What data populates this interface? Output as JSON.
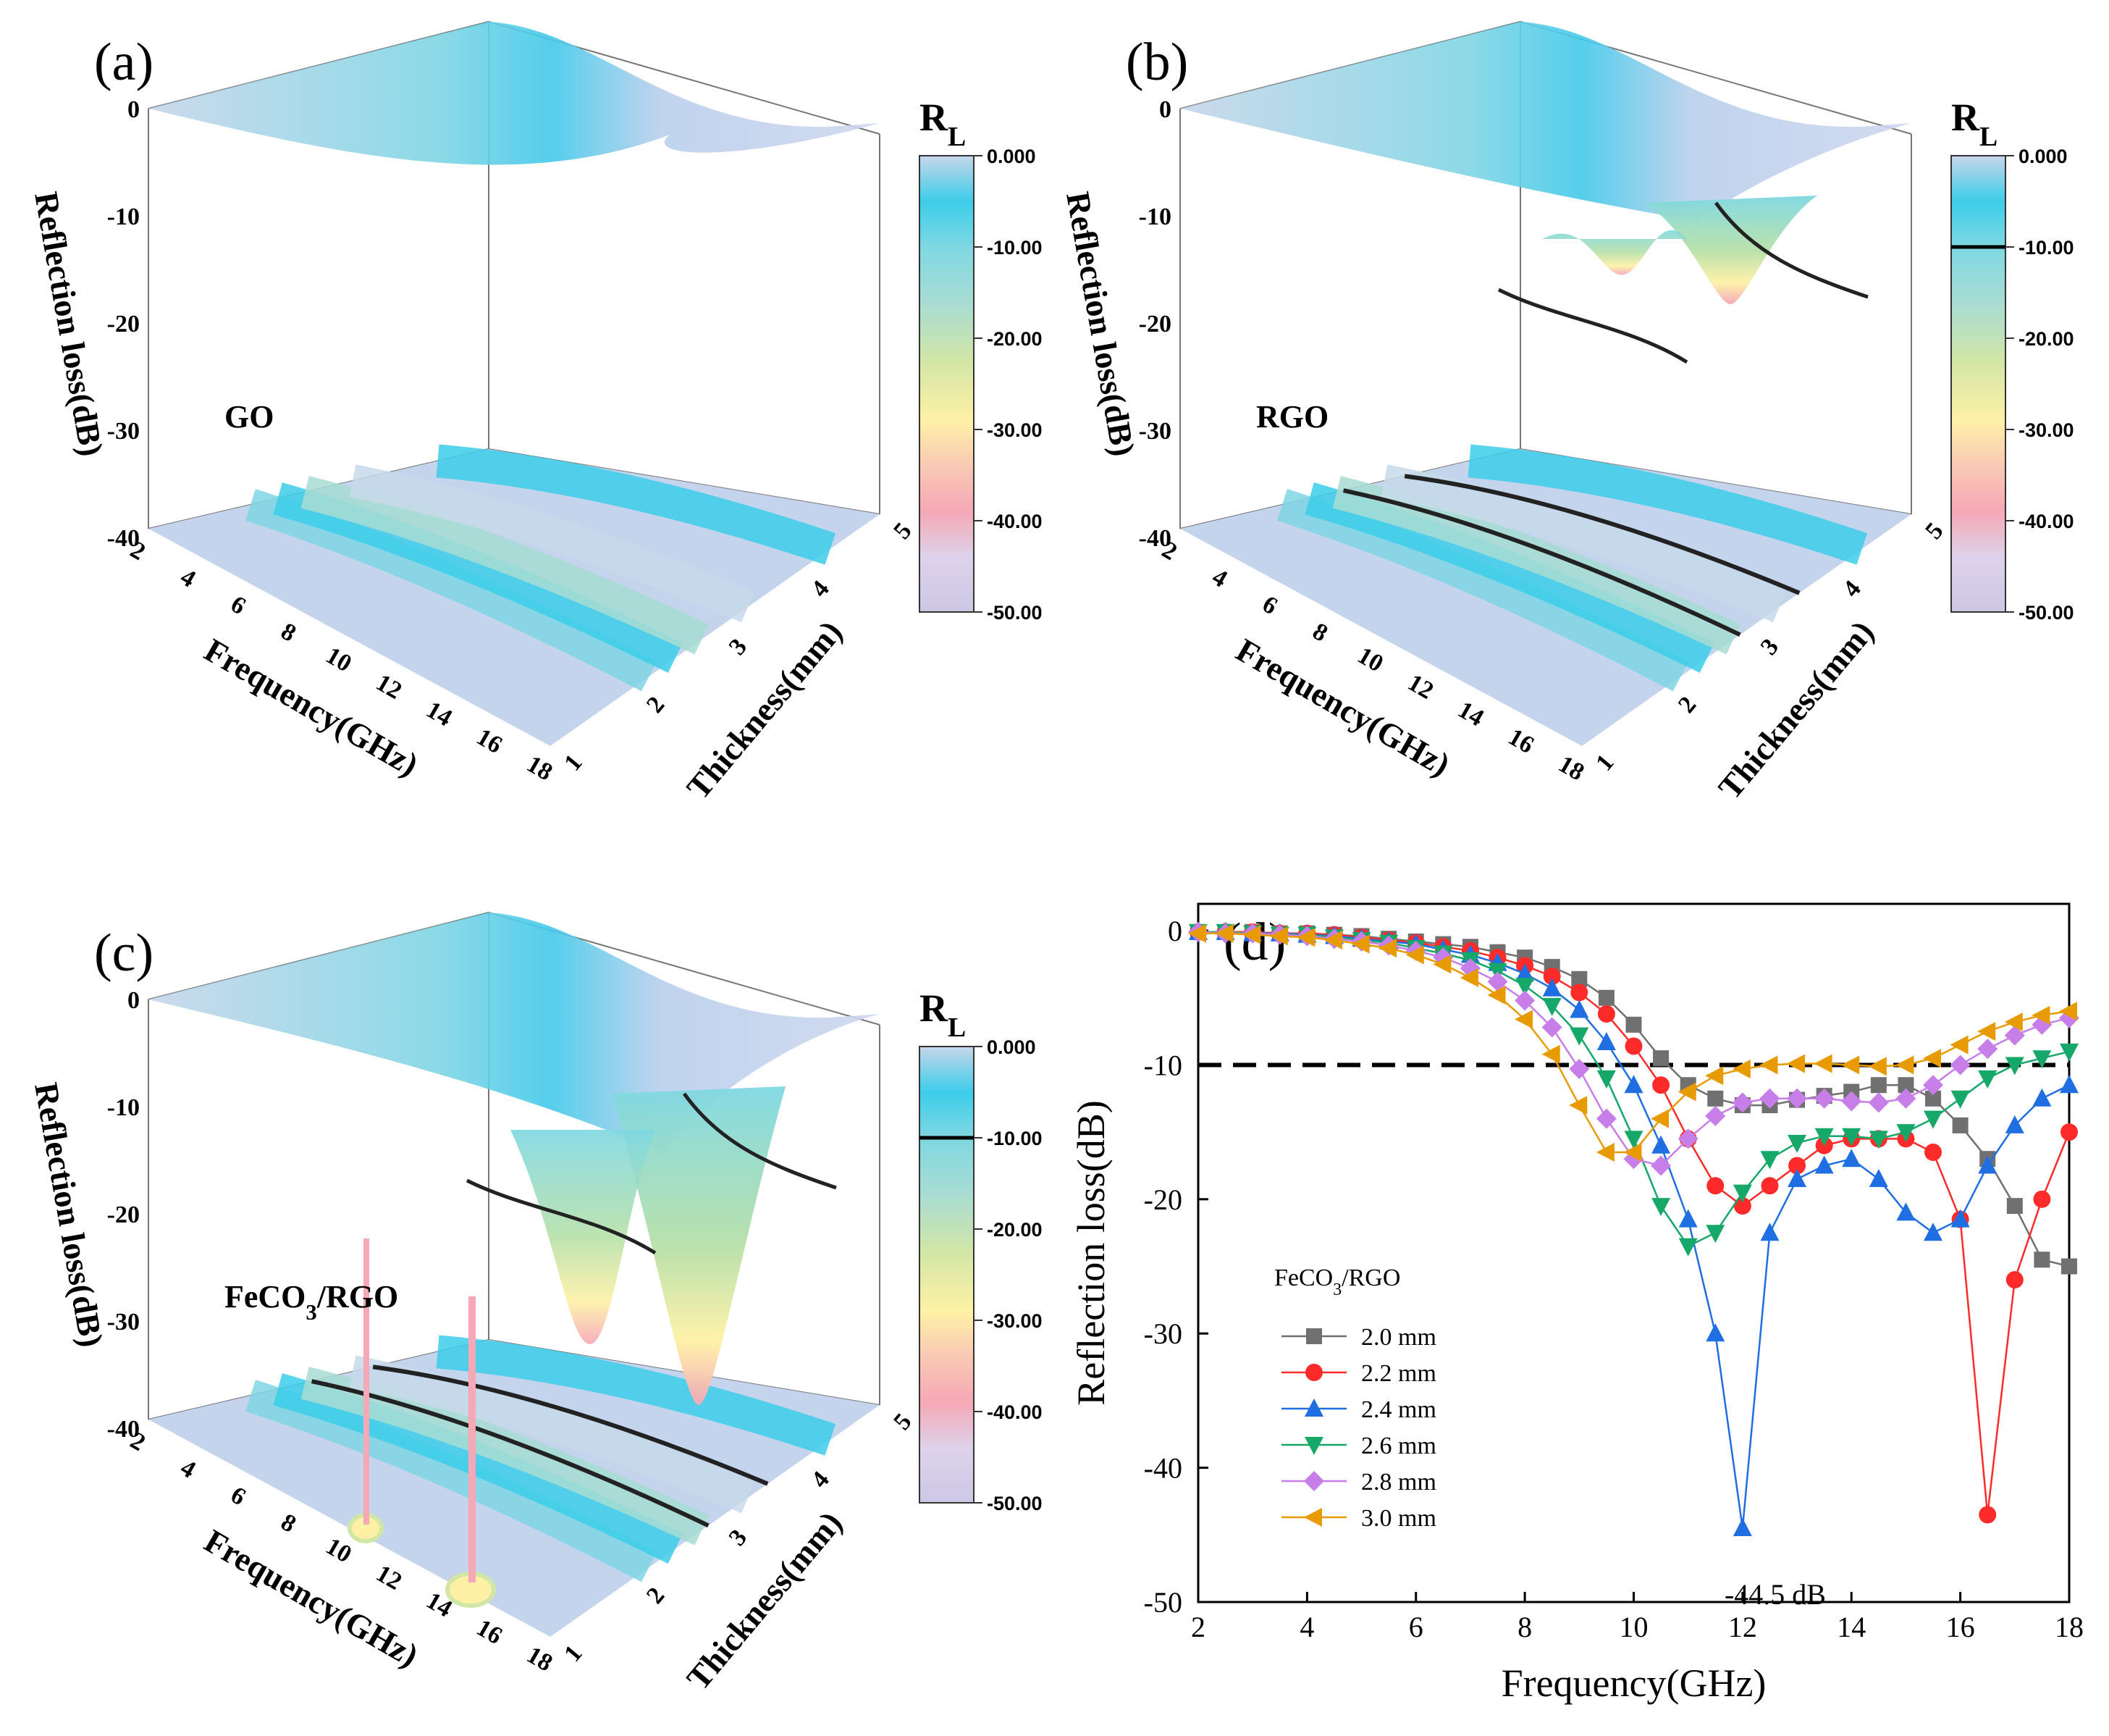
{
  "colors": {
    "palette": [
      "#cdc8e6",
      "#ddd2ea",
      "#f6a8b6",
      "#fef1a6",
      "#d2e6a6",
      "#a7dcd4",
      "#7fd8e2",
      "#3ccdea",
      "#abd4ea",
      "#c7d6ea"
    ],
    "series": [
      "#707070",
      "#ff2b2b",
      "#1f6fe3",
      "#16a868",
      "#c77ee8",
      "#e89b00"
    ]
  },
  "chart_data": [
    {
      "panel": "(a)",
      "type": "surface3d",
      "material": "GO",
      "zlabel": "Reflection loss(dB)",
      "xlabel": "Frequency(GHz)",
      "ylabel": "Thickness(mm)",
      "z_ticks": [
        "0",
        "-10",
        "-20",
        "-30",
        "-40"
      ],
      "x_ticks": [
        "2",
        "4",
        "6",
        "8",
        "10",
        "12",
        "14",
        "16",
        "18"
      ],
      "y_ticks": [
        "1",
        "2",
        "3",
        "4",
        "5"
      ],
      "colorbar": {
        "title": "R",
        "title_sub": "L",
        "ticks": [
          "0.000",
          "-10.00",
          "-20.00",
          "-30.00",
          "-40.00",
          "-50.00"
        ],
        "range": [
          -50,
          0
        ]
      },
      "min_rl_approx": -11
    },
    {
      "panel": "(b)",
      "type": "surface3d",
      "material": "RGO",
      "zlabel": "Reflection loss(dB)",
      "xlabel": "Frequency(GHz)",
      "ylabel": "Thickness(mm)",
      "z_ticks": [
        "0",
        "-10",
        "-20",
        "-30",
        "-40"
      ],
      "x_ticks": [
        "2",
        "4",
        "6",
        "8",
        "10",
        "12",
        "14",
        "16",
        "18"
      ],
      "y_ticks": [
        "1",
        "2",
        "3",
        "4",
        "5"
      ],
      "colorbar": {
        "title": "R",
        "title_sub": "L",
        "ticks": [
          "0.000",
          "-10.00",
          "-20.00",
          "-30.00",
          "-40.00",
          "-50.00"
        ],
        "range": [
          -50,
          0
        ],
        "contour_at": -10
      },
      "min_rl_approx": -27
    },
    {
      "panel": "(c)",
      "type": "surface3d",
      "material": "FeCO",
      "material_sub": "3",
      "material_suffix": "/RGO",
      "zlabel": "Reflection loss(dB)",
      "xlabel": "Frequency(GHz)",
      "ylabel": "Thickness(mm)",
      "z_ticks": [
        "0",
        "-10",
        "-20",
        "-30",
        "-40"
      ],
      "x_ticks": [
        "2",
        "4",
        "6",
        "8",
        "10",
        "12",
        "14",
        "16",
        "18"
      ],
      "y_ticks": [
        "1",
        "2",
        "3",
        "4",
        "5"
      ],
      "colorbar": {
        "title": "R",
        "title_sub": "L",
        "ticks": [
          "0.000",
          "-10.00",
          "-20.00",
          "-30.00",
          "-40.00",
          "-50.00"
        ],
        "range": [
          -50,
          0
        ],
        "contour_at": -10
      },
      "min_rl_approx": -44.5
    },
    {
      "panel": "(d)",
      "type": "line",
      "xlabel": "Frequency(GHz)",
      "ylabel": "Reflection loss(dB)",
      "xlim": [
        2,
        18
      ],
      "ylim": [
        -50,
        2
      ],
      "x_ticks": [
        "2",
        "4",
        "6",
        "8",
        "10",
        "12",
        "14",
        "16",
        "18"
      ],
      "y_ticks": [
        "0",
        "-10",
        "-20",
        "-30",
        "-40",
        "-50"
      ],
      "reference_line": -10,
      "legend_title": "FeCO",
      "legend_title_sub": "3",
      "legend_title_suffix": "/RGO",
      "legend_position": "bottom-left",
      "annotation": "-44.5 dB",
      "x": [
        2.0,
        2.5,
        3.0,
        3.5,
        4.0,
        4.5,
        5.0,
        5.5,
        6.0,
        6.5,
        7.0,
        7.5,
        8.0,
        8.5,
        9.0,
        9.5,
        10.0,
        10.5,
        11.0,
        11.5,
        12.0,
        12.5,
        13.0,
        13.5,
        14.0,
        14.5,
        15.0,
        15.5,
        16.0,
        16.5,
        17.0,
        17.5,
        18.0
      ],
      "series": [
        {
          "name": "2.0 mm",
          "marker": "square",
          "values": [
            -0.1,
            -0.1,
            -0.1,
            -0.2,
            -0.2,
            -0.3,
            -0.4,
            -0.6,
            -0.8,
            -1.0,
            -1.2,
            -1.6,
            -2.0,
            -2.7,
            -3.6,
            -5.0,
            -7.0,
            -9.5,
            -11.5,
            -12.5,
            -13.0,
            -13.0,
            -12.6,
            -12.3,
            -12.0,
            -11.5,
            -11.5,
            -12.5,
            -14.5,
            -17.0,
            -20.5,
            -24.5,
            -25.0
          ]
        },
        {
          "name": "2.2 mm",
          "marker": "circle",
          "values": [
            -0.1,
            -0.1,
            -0.1,
            -0.2,
            -0.2,
            -0.3,
            -0.5,
            -0.7,
            -0.9,
            -1.2,
            -1.5,
            -2.0,
            -2.6,
            -3.4,
            -4.6,
            -6.2,
            -8.6,
            -11.5,
            -15.5,
            -19.0,
            -20.5,
            -19.0,
            -17.5,
            -16.0,
            -15.5,
            -15.5,
            -15.5,
            -16.5,
            -21.5,
            -43.5,
            -26.0,
            -20.0,
            -15.0
          ]
        },
        {
          "name": "2.4 mm",
          "marker": "triangle-up",
          "values": [
            -0.1,
            -0.1,
            -0.2,
            -0.2,
            -0.3,
            -0.4,
            -0.6,
            -0.8,
            -1.0,
            -1.4,
            -1.8,
            -2.4,
            -3.2,
            -4.3,
            -5.9,
            -8.3,
            -11.5,
            -16.0,
            -21.5,
            -30.0,
            -44.5,
            -22.5,
            -18.5,
            -17.5,
            -17.0,
            -18.5,
            -21.0,
            -22.5,
            -21.5,
            -17.5,
            -14.5,
            -12.5,
            -11.5
          ]
        },
        {
          "name": "2.6 mm",
          "marker": "triangle-down",
          "values": [
            -0.1,
            -0.1,
            -0.2,
            -0.3,
            -0.3,
            -0.5,
            -0.7,
            -0.9,
            -1.3,
            -1.7,
            -2.2,
            -3.0,
            -4.1,
            -5.6,
            -7.8,
            -11.0,
            -15.5,
            -20.5,
            -23.5,
            -22.5,
            -19.5,
            -17.0,
            -15.8,
            -15.3,
            -15.3,
            -15.5,
            -15.0,
            -14.0,
            -12.5,
            -11.0,
            -10.0,
            -9.5,
            -9.0
          ]
        },
        {
          "name": "2.8 mm",
          "marker": "diamond",
          "values": [
            -0.1,
            -0.2,
            -0.2,
            -0.3,
            -0.4,
            -0.6,
            -0.8,
            -1.1,
            -1.5,
            -2.0,
            -2.8,
            -3.8,
            -5.2,
            -7.2,
            -10.3,
            -14.0,
            -17.0,
            -17.5,
            -15.5,
            -13.8,
            -12.8,
            -12.5,
            -12.5,
            -12.5,
            -12.7,
            -12.8,
            -12.5,
            -11.5,
            -10.0,
            -8.8,
            -7.8,
            -7.0,
            -6.5
          ]
        },
        {
          "name": "3.0 mm",
          "marker": "triangle-left",
          "values": [
            -0.2,
            -0.2,
            -0.3,
            -0.4,
            -0.5,
            -0.7,
            -1.0,
            -1.3,
            -1.8,
            -2.5,
            -3.5,
            -4.8,
            -6.6,
            -9.2,
            -13.0,
            -16.5,
            -16.5,
            -14.0,
            -12.0,
            -10.8,
            -10.3,
            -10.0,
            -9.9,
            -9.9,
            -10.0,
            -10.1,
            -10.0,
            -9.5,
            -8.5,
            -7.5,
            -6.8,
            -6.3,
            -6.0
          ]
        }
      ]
    }
  ]
}
